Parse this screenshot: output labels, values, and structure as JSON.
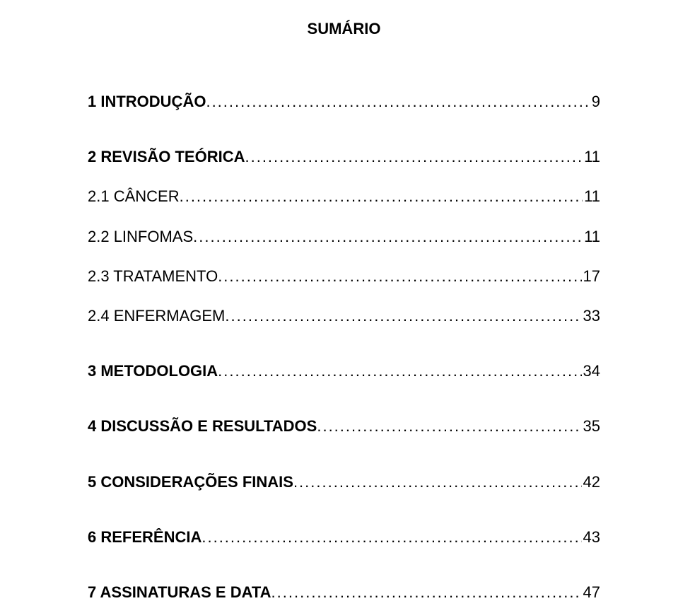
{
  "title": "SUMÁRIO",
  "title_fontsize": 22,
  "font_family": "Arial",
  "text_color": "#000000",
  "background_color": "#ffffff",
  "toc": [
    {
      "label": "1 INTRODUÇÃO",
      "page": "9",
      "bold": true,
      "gap_after": true
    },
    {
      "label": "2 REVISÃO TEÓRICA",
      "page": "11",
      "bold": true,
      "gap_after": false
    },
    {
      "label": "2.1 CÂNCER",
      "page": "11",
      "bold": false,
      "gap_after": false
    },
    {
      "label": "2.2 LINFOMAS",
      "page": "11",
      "bold": false,
      "gap_after": false
    },
    {
      "label": "2.3 TRATAMENTO",
      "page": "17",
      "bold": false,
      "gap_after": false
    },
    {
      "label": "2.4 ENFERMAGEM",
      "page": "33",
      "bold": false,
      "gap_after": true
    },
    {
      "label": "3 METODOLOGIA",
      "page": "34",
      "bold": true,
      "gap_after": true
    },
    {
      "label": "4 DISCUSSÃO E RESULTADOS",
      "page": "35",
      "bold": true,
      "gap_after": true
    },
    {
      "label": "5 CONSIDERAÇÕES FINAIS",
      "page": "42",
      "bold": true,
      "gap_after": true
    },
    {
      "label": "6 REFERÊNCIA",
      "page": "43",
      "bold": true,
      "gap_after": true
    },
    {
      "label": "7 ASSINATURAS E DATA",
      "page": "47",
      "bold": true,
      "gap_after": false
    }
  ]
}
